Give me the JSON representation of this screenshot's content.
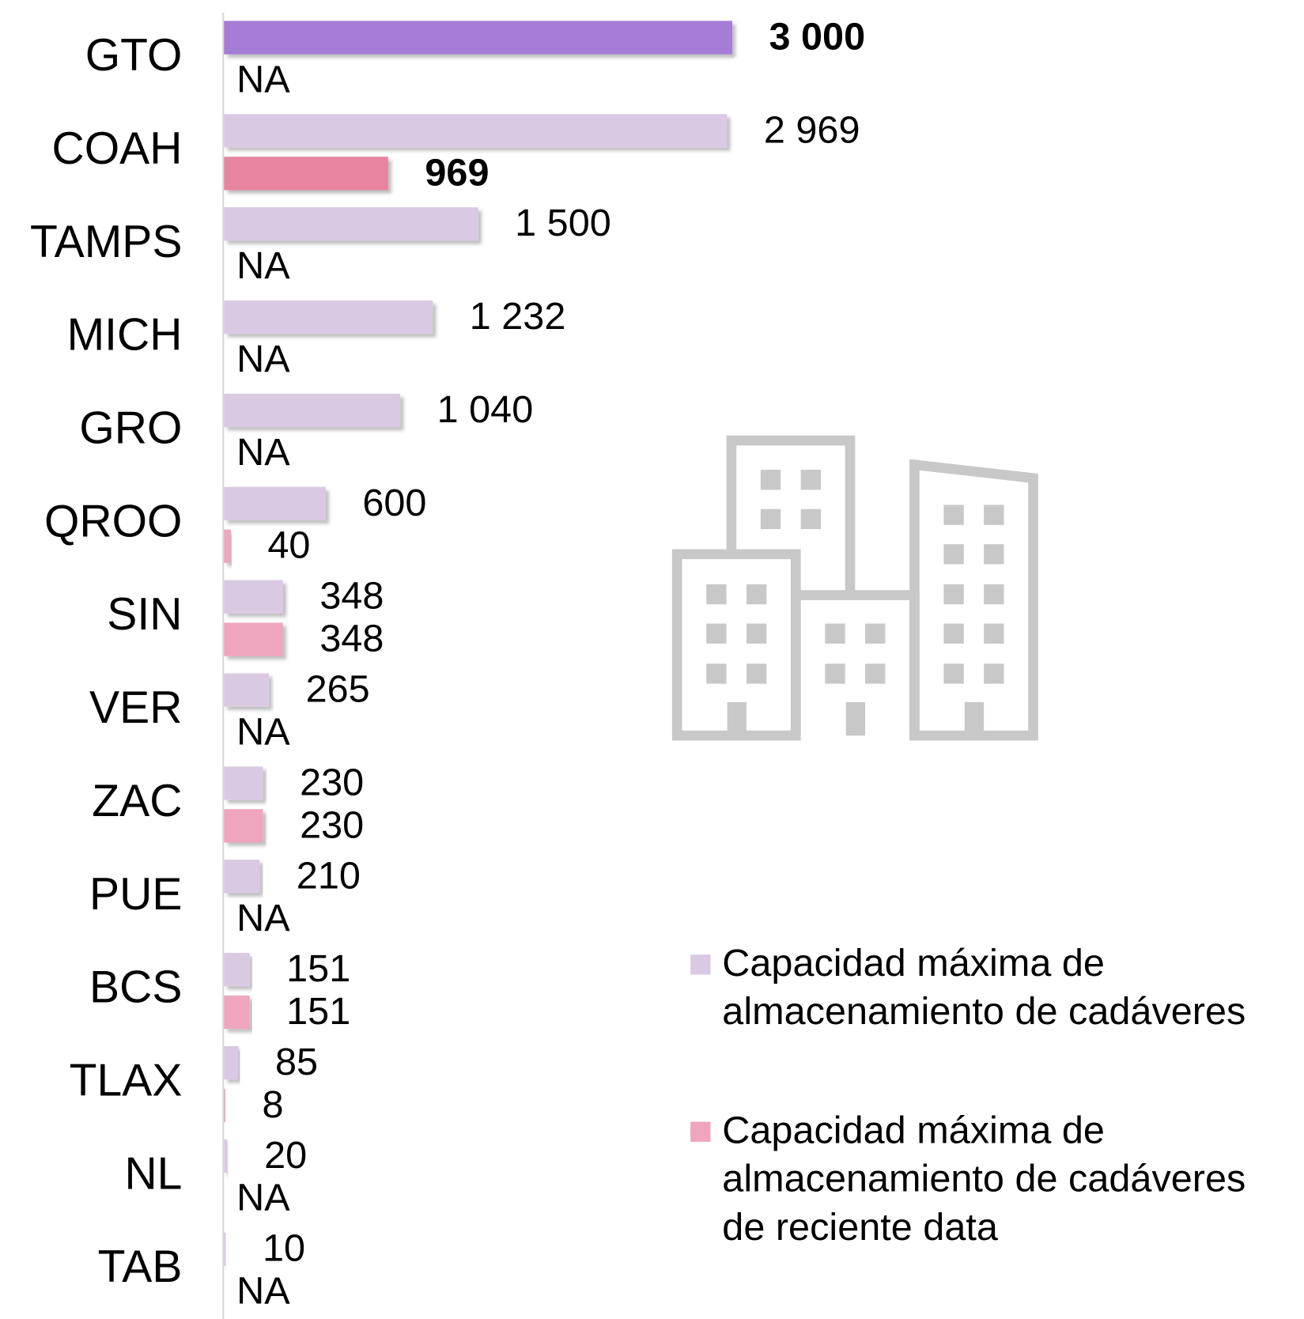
{
  "chart_data": {
    "type": "barh",
    "categories": [
      "GTO",
      "COAH",
      "TAMPS",
      "MICH",
      "GRO",
      "QROO",
      "SIN",
      "VER",
      "ZAC",
      "PUE",
      "BCS",
      "TLAX",
      "NL",
      "TAB"
    ],
    "series": [
      {
        "name": "Capacidad máxima de almacenamiento de cadáveres",
        "color": "#d9c9e3",
        "highlight": {
          "index": 0,
          "color": "#a57bd6"
        },
        "values": [
          3000,
          2969,
          1500,
          1232,
          1040,
          600,
          348,
          265,
          230,
          210,
          151,
          85,
          20,
          10
        ],
        "value_labels": [
          "3 000",
          "2 969",
          "1 500",
          "1 232",
          "1 040",
          "600",
          "348",
          "265",
          "230",
          "210",
          "151",
          "85",
          "20",
          "10"
        ]
      },
      {
        "name": "Capacidad máxima de almacenamiento de cadáveres de reciente data",
        "color": "#eea5bd",
        "highlight": {
          "index": 1,
          "color": "#e8849f"
        },
        "values": [
          null,
          969,
          null,
          null,
          null,
          40,
          348,
          null,
          230,
          null,
          151,
          8,
          null,
          null
        ],
        "value_labels": [
          "NA",
          "969",
          "NA",
          "NA",
          "NA",
          "40",
          "348",
          "NA",
          "230",
          "NA",
          "151",
          "8",
          "NA",
          "NA"
        ]
      }
    ],
    "xlim": [
      0,
      3000
    ]
  }
}
